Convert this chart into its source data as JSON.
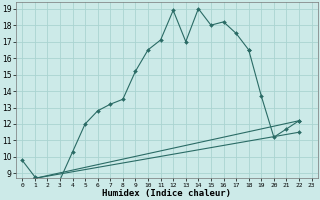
{
  "xlabel": "Humidex (Indice chaleur)",
  "bg_color": "#cceae8",
  "grid_color": "#aad4d1",
  "line_color": "#2a6b65",
  "xlim": [
    -0.5,
    23.5
  ],
  "ylim": [
    8.7,
    19.4
  ],
  "xticks": [
    0,
    1,
    2,
    3,
    4,
    5,
    6,
    7,
    8,
    9,
    10,
    11,
    12,
    13,
    14,
    15,
    16,
    17,
    18,
    19,
    20,
    21,
    22,
    23
  ],
  "yticks": [
    9,
    10,
    11,
    12,
    13,
    14,
    15,
    16,
    17,
    18,
    19
  ],
  "curve1_x": [
    0,
    1,
    2,
    3,
    4,
    5,
    6,
    7,
    8,
    9,
    10,
    11,
    12,
    13,
    14,
    15,
    16,
    17,
    18,
    19,
    20,
    21,
    22
  ],
  "curve1_y": [
    9.8,
    8.8,
    8.6,
    8.6,
    10.3,
    12.0,
    12.8,
    13.2,
    13.5,
    15.2,
    16.5,
    17.1,
    18.9,
    17.0,
    19.0,
    18.0,
    18.2,
    17.5,
    16.5,
    null,
    null,
    null,
    null
  ],
  "curve2_x": [
    18,
    19,
    20,
    21,
    22
  ],
  "curve2_y": [
    16.5,
    13.7,
    11.2,
    11.7,
    12.2
  ],
  "line1_x": [
    1,
    22
  ],
  "line1_y": [
    8.7,
    12.2
  ],
  "line2_x": [
    1,
    22
  ],
  "line2_y": [
    8.7,
    11.5
  ]
}
